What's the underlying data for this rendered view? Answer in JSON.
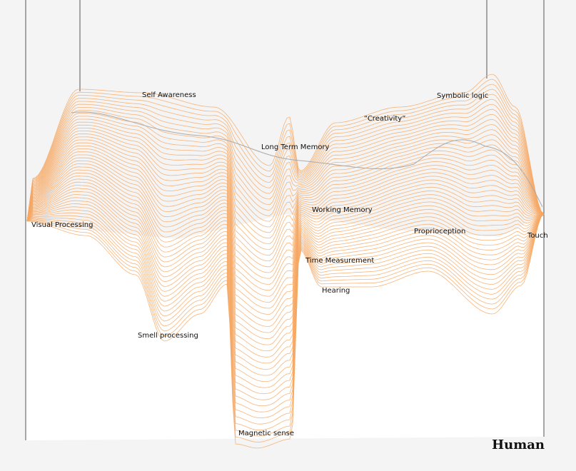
{
  "title": "Human",
  "labels": [
    "Self Awareness",
    "Symbolic logic",
    "“Creativity”",
    "Long Term Memory",
    "Visual Processing",
    "Working Memory",
    "Proprioception",
    "Touch",
    "Time Measurement",
    "Hearing",
    "Smell processing",
    "Magnetic sense"
  ]
}
